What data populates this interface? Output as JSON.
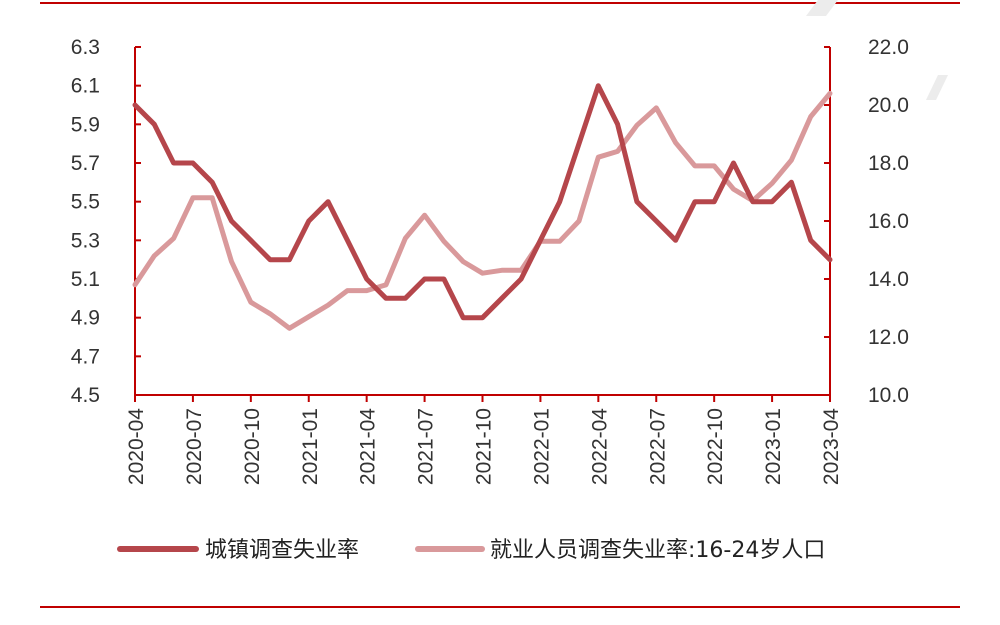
{
  "chart_data": {
    "type": "line",
    "x": [
      "2020-04",
      "2020-05",
      "2020-06",
      "2020-07",
      "2020-08",
      "2020-09",
      "2020-10",
      "2020-11",
      "2020-12",
      "2021-01",
      "2021-02",
      "2021-03",
      "2021-04",
      "2021-05",
      "2021-06",
      "2021-07",
      "2021-08",
      "2021-09",
      "2021-10",
      "2021-11",
      "2021-12",
      "2022-01",
      "2022-02",
      "2022-03",
      "2022-04",
      "2022-05",
      "2022-06",
      "2022-07",
      "2022-08",
      "2022-09",
      "2022-10",
      "2022-11",
      "2022-12",
      "2023-01",
      "2023-02",
      "2023-03",
      "2023-04"
    ],
    "xticks": [
      "2020-04",
      "2020-07",
      "2020-10",
      "2021-01",
      "2021-04",
      "2021-07",
      "2021-10",
      "2022-01",
      "2022-04",
      "2022-07",
      "2022-10",
      "2023-01",
      "2023-04"
    ],
    "series": [
      {
        "name": "城镇调查失业率",
        "axis": "left",
        "color": "#b5464b",
        "values": [
          6.0,
          5.9,
          5.7,
          5.7,
          5.6,
          5.4,
          5.3,
          5.2,
          5.2,
          5.4,
          5.5,
          5.3,
          5.1,
          5.0,
          5.0,
          5.1,
          5.1,
          4.9,
          4.9,
          5.0,
          5.1,
          5.3,
          5.5,
          5.8,
          6.1,
          5.9,
          5.5,
          5.4,
          5.3,
          5.5,
          5.5,
          5.7,
          5.5,
          5.5,
          5.6,
          5.3,
          5.2
        ]
      },
      {
        "name": "就业人员调查失业率:16-24岁人口",
        "axis": "right",
        "color": "#d9999b",
        "values": [
          13.8,
          14.8,
          15.4,
          16.8,
          16.8,
          14.6,
          13.2,
          12.8,
          12.3,
          12.7,
          13.1,
          13.6,
          13.6,
          13.8,
          15.4,
          16.2,
          15.3,
          14.6,
          14.2,
          14.3,
          14.3,
          15.3,
          15.3,
          16.0,
          18.2,
          18.4,
          19.3,
          19.9,
          18.7,
          17.9,
          17.9,
          17.1,
          16.7,
          17.3,
          18.1,
          19.6,
          20.4
        ]
      }
    ],
    "yaxis_left": {
      "min": 4.5,
      "max": 6.3,
      "ticks": [
        "6.3",
        "6.1",
        "5.9",
        "5.7",
        "5.5",
        "5.3",
        "5.1",
        "4.9",
        "4.7",
        "4.5"
      ]
    },
    "yaxis_right": {
      "min": 10.0,
      "max": 22.0,
      "ticks": [
        "22.0",
        "20.0",
        "18.0",
        "16.0",
        "14.0",
        "12.0",
        "10.0"
      ]
    },
    "grid": false,
    "legend_position": "bottom",
    "axis_color": "#c00000",
    "frame_line_color": "#c00000"
  }
}
